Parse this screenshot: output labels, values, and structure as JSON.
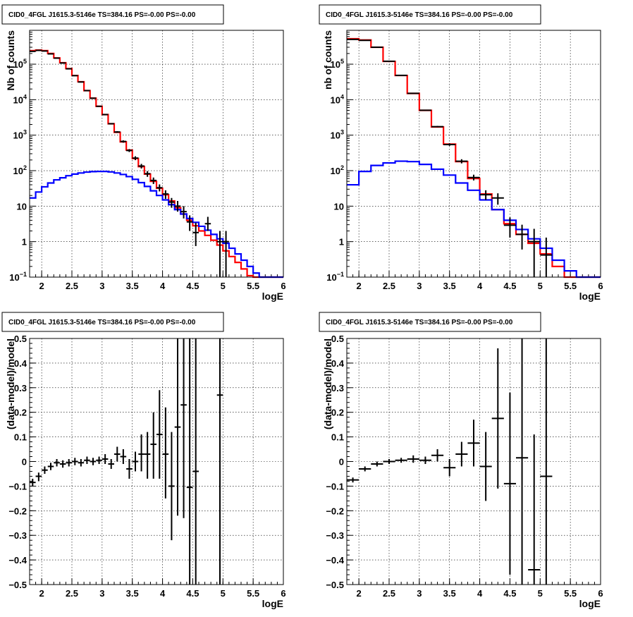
{
  "colors": {
    "data": "#000000",
    "total_model": "#ff0000",
    "source_model": "#0000ff",
    "frame": "#000000",
    "grid": "#000000"
  },
  "chart_data": [
    {
      "type": "line",
      "panel": "top-left",
      "title": "CID0_4FGL J1615.3-5146e TS=384.16 PS=-0.00 PS=-0.00",
      "xlabel": "logE",
      "ylabel": "Nb of counts",
      "xlim": [
        1.8,
        6.0
      ],
      "ylim": [
        0.1,
        900000
      ],
      "yscale": "log",
      "grid": true,
      "x_ticks": [
        "2",
        "2.5",
        "3",
        "3.5",
        "4",
        "4.5",
        "5",
        "5.5",
        "6"
      ],
      "y_ticks": [
        {
          "v": 0.1,
          "base": "10",
          "exp": "−1"
        },
        {
          "v": 1,
          "t": "1"
        },
        {
          "v": 10,
          "t": "10"
        },
        {
          "v": 100,
          "base": "10",
          "exp": "2"
        },
        {
          "v": 1000,
          "base": "10",
          "exp": "3"
        },
        {
          "v": 10000,
          "base": "10",
          "exp": "4"
        },
        {
          "v": 100000,
          "base": "10",
          "exp": "5"
        }
      ],
      "bin_width": 0.1,
      "bin_starts": [
        1.8,
        1.9,
        2.0,
        2.1,
        2.2,
        2.3,
        2.4,
        2.5,
        2.6,
        2.7,
        2.8,
        2.9,
        3.0,
        3.1,
        3.2,
        3.3,
        3.4,
        3.5,
        3.6,
        3.7,
        3.8,
        3.9,
        4.0,
        4.1,
        4.2,
        4.3,
        4.4,
        4.5,
        4.6,
        4.7,
        4.8,
        4.9,
        5.0,
        5.1,
        5.2,
        5.3,
        5.4,
        5.5,
        5.6,
        5.7,
        5.8,
        5.9
      ],
      "series": [
        {
          "role": "total_model",
          "values": [
            240000,
            250000,
            240000,
            200000,
            150000,
            110000,
            75000,
            48000,
            32000,
            18000,
            11000,
            6500,
            3800,
            2100,
            1200,
            650,
            380,
            220,
            130,
            80,
            50,
            32,
            21,
            14,
            9,
            6,
            4,
            2.8,
            2.0,
            1.5,
            1.1,
            0.8,
            0.55,
            0.38,
            0.26,
            0.17,
            0.11,
            0.1,
            0.1,
            0.1,
            0.1,
            0.1
          ]
        },
        {
          "role": "source_model",
          "values": [
            17,
            25,
            35,
            45,
            55,
            63,
            72,
            80,
            86,
            91,
            94,
            95,
            95,
            92,
            86,
            78,
            68,
            57,
            46,
            36,
            27,
            20,
            15,
            11,
            8,
            6,
            4.5,
            3.5,
            2.7,
            2.1,
            1.6,
            1.2,
            0.9,
            0.65,
            0.45,
            0.3,
            0.2,
            0.13,
            0.1,
            0.1,
            0.1,
            0.1
          ]
        }
      ],
      "points": [
        {
          "x": 1.85,
          "y": 230000,
          "lo": 225000,
          "hi": 235000
        },
        {
          "x": 1.95,
          "y": 245000,
          "lo": 240000,
          "hi": 250000
        },
        {
          "x": 2.05,
          "y": 235000,
          "lo": 230000,
          "hi": 240000
        },
        {
          "x": 2.15,
          "y": 195000,
          "lo": 190000,
          "hi": 200000
        },
        {
          "x": 2.25,
          "y": 148000,
          "lo": 144000,
          "hi": 152000
        },
        {
          "x": 2.35,
          "y": 108000,
          "lo": 105000,
          "hi": 111000
        },
        {
          "x": 2.45,
          "y": 74000,
          "lo": 72000,
          "hi": 76000
        },
        {
          "x": 2.55,
          "y": 47500,
          "lo": 46000,
          "hi": 49000
        },
        {
          "x": 2.65,
          "y": 31500,
          "lo": 30500,
          "hi": 32500
        },
        {
          "x": 2.75,
          "y": 18000,
          "lo": 17400,
          "hi": 18600
        },
        {
          "x": 2.85,
          "y": 11000,
          "lo": 10600,
          "hi": 11400
        },
        {
          "x": 2.95,
          "y": 6500,
          "lo": 6300,
          "hi": 6700
        },
        {
          "x": 3.05,
          "y": 3800,
          "lo": 3650,
          "hi": 3950
        },
        {
          "x": 3.15,
          "y": 2100,
          "lo": 2010,
          "hi": 2190
        },
        {
          "x": 3.25,
          "y": 1230,
          "lo": 1160,
          "hi": 1300
        },
        {
          "x": 3.35,
          "y": 665,
          "lo": 615,
          "hi": 715
        },
        {
          "x": 3.45,
          "y": 370,
          "lo": 335,
          "hi": 405
        },
        {
          "x": 3.55,
          "y": 226,
          "lo": 198,
          "hi": 254
        },
        {
          "x": 3.65,
          "y": 135,
          "lo": 115,
          "hi": 155
        },
        {
          "x": 3.75,
          "y": 82,
          "lo": 67,
          "hi": 97
        },
        {
          "x": 3.85,
          "y": 53,
          "lo": 42,
          "hi": 64
        },
        {
          "x": 3.95,
          "y": 33,
          "lo": 26,
          "hi": 41
        },
        {
          "x": 4.05,
          "y": 22,
          "lo": 16,
          "hi": 28
        },
        {
          "x": 4.15,
          "y": 13,
          "lo": 9,
          "hi": 17
        },
        {
          "x": 4.25,
          "y": 10,
          "lo": 7,
          "hi": 14
        },
        {
          "x": 4.35,
          "y": 7,
          "lo": 4.5,
          "hi": 10
        },
        {
          "x": 4.45,
          "y": 3.6,
          "lo": 2,
          "hi": 5.5
        },
        {
          "x": 4.55,
          "y": 1.8,
          "lo": 0.75,
          "hi": 3.4
        },
        {
          "x": 4.75,
          "y": 3.2,
          "lo": 2,
          "hi": 5
        },
        {
          "x": 4.95,
          "y": 1,
          "lo": 0.1,
          "hi": 2
        },
        {
          "x": 5.05,
          "y": 1,
          "lo": 0.1,
          "hi": 2
        }
      ]
    },
    {
      "type": "line",
      "panel": "top-right",
      "title": "CID0_4FGL J1615.3-5146e TS=384.16 PS=-0.00 PS=-0.00",
      "xlabel": "logE",
      "ylabel": "nb of counts",
      "xlim": [
        1.8,
        6.0
      ],
      "ylim": [
        0.1,
        900000
      ],
      "yscale": "log",
      "grid": true,
      "x_ticks": [
        "2",
        "2.5",
        "3",
        "3.5",
        "4",
        "4.5",
        "5",
        "5.5",
        "6"
      ],
      "y_ticks": [
        {
          "v": 0.1,
          "base": "10",
          "exp": "−1"
        },
        {
          "v": 1,
          "t": "1"
        },
        {
          "v": 10,
          "t": "10"
        },
        {
          "v": 100,
          "base": "10",
          "exp": "2"
        },
        {
          "v": 1000,
          "base": "10",
          "exp": "3"
        },
        {
          "v": 10000,
          "base": "10",
          "exp": "4"
        },
        {
          "v": 100000,
          "base": "10",
          "exp": "5"
        }
      ],
      "bin_width": 0.2,
      "bin_starts": [
        1.8,
        2.0,
        2.2,
        2.4,
        2.6,
        2.8,
        3.0,
        3.2,
        3.4,
        3.6,
        3.8,
        4.0,
        4.2,
        4.4,
        4.6,
        4.8,
        5.0,
        5.2,
        5.4,
        5.6,
        5.8
      ],
      "series": [
        {
          "role": "total_model",
          "values": [
            520000,
            480000,
            300000,
            120000,
            48000,
            15000,
            5000,
            1700,
            560,
            180,
            60,
            22,
            8,
            3.2,
            1.6,
            0.9,
            0.45,
            0.2,
            0.1,
            0.1,
            0.1
          ]
        },
        {
          "role": "source_model",
          "values": [
            40,
            95,
            140,
            165,
            185,
            180,
            150,
            110,
            75,
            45,
            28,
            15,
            8,
            4,
            2.2,
            1.2,
            0.65,
            0.3,
            0.15,
            0.1,
            0.1
          ]
        }
      ],
      "points": [
        {
          "x": 1.9,
          "y": 500000,
          "lo": 495000,
          "hi": 505000
        },
        {
          "x": 2.1,
          "y": 470000,
          "lo": 465000,
          "hi": 475000
        },
        {
          "x": 2.3,
          "y": 300000,
          "lo": 296000,
          "hi": 304000
        },
        {
          "x": 2.5,
          "y": 121000,
          "lo": 119000,
          "hi": 123000
        },
        {
          "x": 2.7,
          "y": 48300,
          "lo": 47400,
          "hi": 49200
        },
        {
          "x": 2.9,
          "y": 15100,
          "lo": 14800,
          "hi": 15400
        },
        {
          "x": 3.1,
          "y": 5020,
          "lo": 4880,
          "hi": 5160
        },
        {
          "x": 3.3,
          "y": 1740,
          "lo": 1660,
          "hi": 1820
        },
        {
          "x": 3.5,
          "y": 545,
          "lo": 500,
          "hi": 590
        },
        {
          "x": 3.7,
          "y": 185,
          "lo": 160,
          "hi": 210
        },
        {
          "x": 3.9,
          "y": 64,
          "lo": 53,
          "hi": 77
        },
        {
          "x": 4.1,
          "y": 21,
          "lo": 15,
          "hi": 28
        },
        {
          "x": 4.3,
          "y": 17,
          "lo": 11,
          "hi": 23
        },
        {
          "x": 4.5,
          "y": 2.9,
          "lo": 1.3,
          "hi": 4.8
        },
        {
          "x": 4.7,
          "y": 1.6,
          "lo": 0.6,
          "hi": 3
        },
        {
          "x": 4.9,
          "y": 1,
          "lo": 0.1,
          "hi": 2.3
        },
        {
          "x": 5.1,
          "y": 0.42,
          "lo": 0.1,
          "hi": 1.3
        }
      ]
    },
    {
      "type": "scatter",
      "panel": "bottom-left",
      "title": "CID0_4FGL J1615.3-5146e TS=384.16 PS=-0.00 PS=-0.00",
      "xlabel": "logE",
      "ylabel": "(data-model)/model",
      "xlim": [
        1.8,
        6.0
      ],
      "ylim": [
        -0.5,
        0.5
      ],
      "yscale": "linear",
      "grid": true,
      "x_ticks": [
        "2",
        "2.5",
        "3",
        "3.5",
        "4",
        "4.5",
        "5",
        "5.5",
        "6"
      ],
      "y_ticks": [
        {
          "v": -0.5,
          "t": "−0.5"
        },
        {
          "v": -0.4,
          "t": "−0.4"
        },
        {
          "v": -0.3,
          "t": "−0.3"
        },
        {
          "v": -0.2,
          "t": "−0.2"
        },
        {
          "v": -0.1,
          "t": "−0.1"
        },
        {
          "v": 0,
          "t": "0"
        },
        {
          "v": 0.1,
          "t": "0.1"
        },
        {
          "v": 0.2,
          "t": "0.2"
        },
        {
          "v": 0.3,
          "t": "0.3"
        },
        {
          "v": 0.4,
          "t": "0.4"
        },
        {
          "v": 0.5,
          "t": "0.5"
        }
      ],
      "points": [
        {
          "x": 1.85,
          "y": -0.085,
          "lo": -0.1,
          "hi": -0.07,
          "w": 0.05
        },
        {
          "x": 1.95,
          "y": -0.06,
          "lo": -0.08,
          "hi": -0.045,
          "w": 0.05
        },
        {
          "x": 2.05,
          "y": -0.035,
          "lo": -0.05,
          "hi": -0.02,
          "w": 0.05
        },
        {
          "x": 2.15,
          "y": -0.02,
          "lo": -0.035,
          "hi": -0.005,
          "w": 0.05
        },
        {
          "x": 2.25,
          "y": -0.005,
          "lo": -0.02,
          "hi": 0.01,
          "w": 0.05
        },
        {
          "x": 2.35,
          "y": -0.01,
          "lo": -0.025,
          "hi": 0.005,
          "w": 0.05
        },
        {
          "x": 2.45,
          "y": -0.005,
          "lo": -0.02,
          "hi": 0.01,
          "w": 0.05
        },
        {
          "x": 2.55,
          "y": 0.0,
          "lo": -0.015,
          "hi": 0.015,
          "w": 0.05
        },
        {
          "x": 2.65,
          "y": -0.005,
          "lo": -0.02,
          "hi": 0.01,
          "w": 0.05
        },
        {
          "x": 2.75,
          "y": 0.005,
          "lo": -0.01,
          "hi": 0.02,
          "w": 0.05
        },
        {
          "x": 2.85,
          "y": 0.0,
          "lo": -0.015,
          "hi": 0.015,
          "w": 0.05
        },
        {
          "x": 2.95,
          "y": 0.005,
          "lo": -0.01,
          "hi": 0.02,
          "w": 0.05
        },
        {
          "x": 3.05,
          "y": 0.01,
          "lo": -0.01,
          "hi": 0.03,
          "w": 0.05
        },
        {
          "x": 3.15,
          "y": -0.01,
          "lo": -0.03,
          "hi": 0.01,
          "w": 0.05
        },
        {
          "x": 3.25,
          "y": 0.03,
          "lo": 0.0,
          "hi": 0.06,
          "w": 0.05
        },
        {
          "x": 3.35,
          "y": 0.02,
          "lo": -0.01,
          "hi": 0.05,
          "w": 0.05
        },
        {
          "x": 3.45,
          "y": -0.03,
          "lo": -0.07,
          "hi": 0.01,
          "w": 0.05
        },
        {
          "x": 3.55,
          "y": 0.0,
          "lo": -0.04,
          "hi": 0.04,
          "w": 0.05
        },
        {
          "x": 3.65,
          "y": 0.03,
          "lo": -0.04,
          "hi": 0.11,
          "w": 0.05
        },
        {
          "x": 3.75,
          "y": 0.03,
          "lo": -0.07,
          "hi": 0.12,
          "w": 0.05
        },
        {
          "x": 3.85,
          "y": 0.07,
          "lo": -0.07,
          "hi": 0.2,
          "w": 0.05
        },
        {
          "x": 3.95,
          "y": 0.11,
          "lo": -0.07,
          "hi": 0.29,
          "w": 0.05
        },
        {
          "x": 4.05,
          "y": 0.03,
          "lo": -0.15,
          "hi": 0.22,
          "w": 0.05
        },
        {
          "x": 4.15,
          "y": -0.1,
          "lo": -0.32,
          "hi": 0.12,
          "w": 0.05
        },
        {
          "x": 4.25,
          "y": 0.14,
          "lo": -0.22,
          "hi": 0.5,
          "w": 0.05
        },
        {
          "x": 4.35,
          "y": 0.23,
          "lo": -0.23,
          "hi": 0.5,
          "w": 0.05
        },
        {
          "x": 4.45,
          "y": -0.105,
          "lo": -0.5,
          "hi": 0.5,
          "w": 0.05
        },
        {
          "x": 4.55,
          "y": -0.04,
          "lo": -0.5,
          "hi": 0.5,
          "w": 0.05
        },
        {
          "x": 4.95,
          "y": 0.27,
          "lo": -0.5,
          "hi": 0.5,
          "w": 0.05
        }
      ]
    },
    {
      "type": "scatter",
      "panel": "bottom-right",
      "title": "CID0_4FGL J1615.3-5146e TS=384.16 PS=-0.00 PS=-0.00",
      "xlabel": "logE",
      "ylabel": "(data-model)/model",
      "xlim": [
        1.8,
        6.0
      ],
      "ylim": [
        -0.5,
        0.5
      ],
      "yscale": "linear",
      "grid": true,
      "x_ticks": [
        "2",
        "2.5",
        "3",
        "3.5",
        "4",
        "4.5",
        "5",
        "5.5",
        "6"
      ],
      "y_ticks": [
        {
          "v": -0.5,
          "t": "−0.5"
        },
        {
          "v": -0.4,
          "t": "−0.4"
        },
        {
          "v": -0.3,
          "t": "−0.3"
        },
        {
          "v": -0.2,
          "t": "−0.2"
        },
        {
          "v": -0.1,
          "t": "−0.1"
        },
        {
          "v": 0,
          "t": "0"
        },
        {
          "v": 0.1,
          "t": "0.1"
        },
        {
          "v": 0.2,
          "t": "0.2"
        },
        {
          "v": 0.3,
          "t": "0.3"
        },
        {
          "v": 0.4,
          "t": "0.4"
        },
        {
          "v": 0.5,
          "t": "0.5"
        }
      ],
      "points": [
        {
          "x": 1.9,
          "y": -0.075,
          "lo": -0.085,
          "hi": -0.065,
          "w": 0.1
        },
        {
          "x": 2.1,
          "y": -0.03,
          "lo": -0.04,
          "hi": -0.02,
          "w": 0.1
        },
        {
          "x": 2.3,
          "y": -0.01,
          "lo": -0.02,
          "hi": 0.0,
          "w": 0.1
        },
        {
          "x": 2.5,
          "y": 0.0,
          "lo": -0.01,
          "hi": 0.01,
          "w": 0.1
        },
        {
          "x": 2.7,
          "y": 0.005,
          "lo": -0.005,
          "hi": 0.015,
          "w": 0.1
        },
        {
          "x": 2.9,
          "y": 0.01,
          "lo": -0.005,
          "hi": 0.025,
          "w": 0.1
        },
        {
          "x": 3.1,
          "y": 0.005,
          "lo": -0.01,
          "hi": 0.02,
          "w": 0.1
        },
        {
          "x": 3.3,
          "y": 0.025,
          "lo": 0.0,
          "hi": 0.05,
          "w": 0.1
        },
        {
          "x": 3.5,
          "y": -0.025,
          "lo": -0.06,
          "hi": 0.01,
          "w": 0.1
        },
        {
          "x": 3.7,
          "y": 0.03,
          "lo": -0.02,
          "hi": 0.08,
          "w": 0.1
        },
        {
          "x": 3.9,
          "y": 0.075,
          "lo": -0.02,
          "hi": 0.17,
          "w": 0.1
        },
        {
          "x": 4.1,
          "y": -0.02,
          "lo": -0.16,
          "hi": 0.12,
          "w": 0.1
        },
        {
          "x": 4.3,
          "y": 0.175,
          "lo": -0.11,
          "hi": 0.46,
          "w": 0.1
        },
        {
          "x": 4.5,
          "y": -0.09,
          "lo": -0.46,
          "hi": 0.28,
          "w": 0.1
        },
        {
          "x": 4.7,
          "y": 0.015,
          "lo": -0.5,
          "hi": 0.5,
          "w": 0.1
        },
        {
          "x": 4.9,
          "y": -0.44,
          "lo": -0.5,
          "hi": 0.11,
          "w": 0.1
        },
        {
          "x": 5.1,
          "y": -0.06,
          "lo": -0.5,
          "hi": 0.5,
          "w": 0.1
        }
      ]
    }
  ]
}
